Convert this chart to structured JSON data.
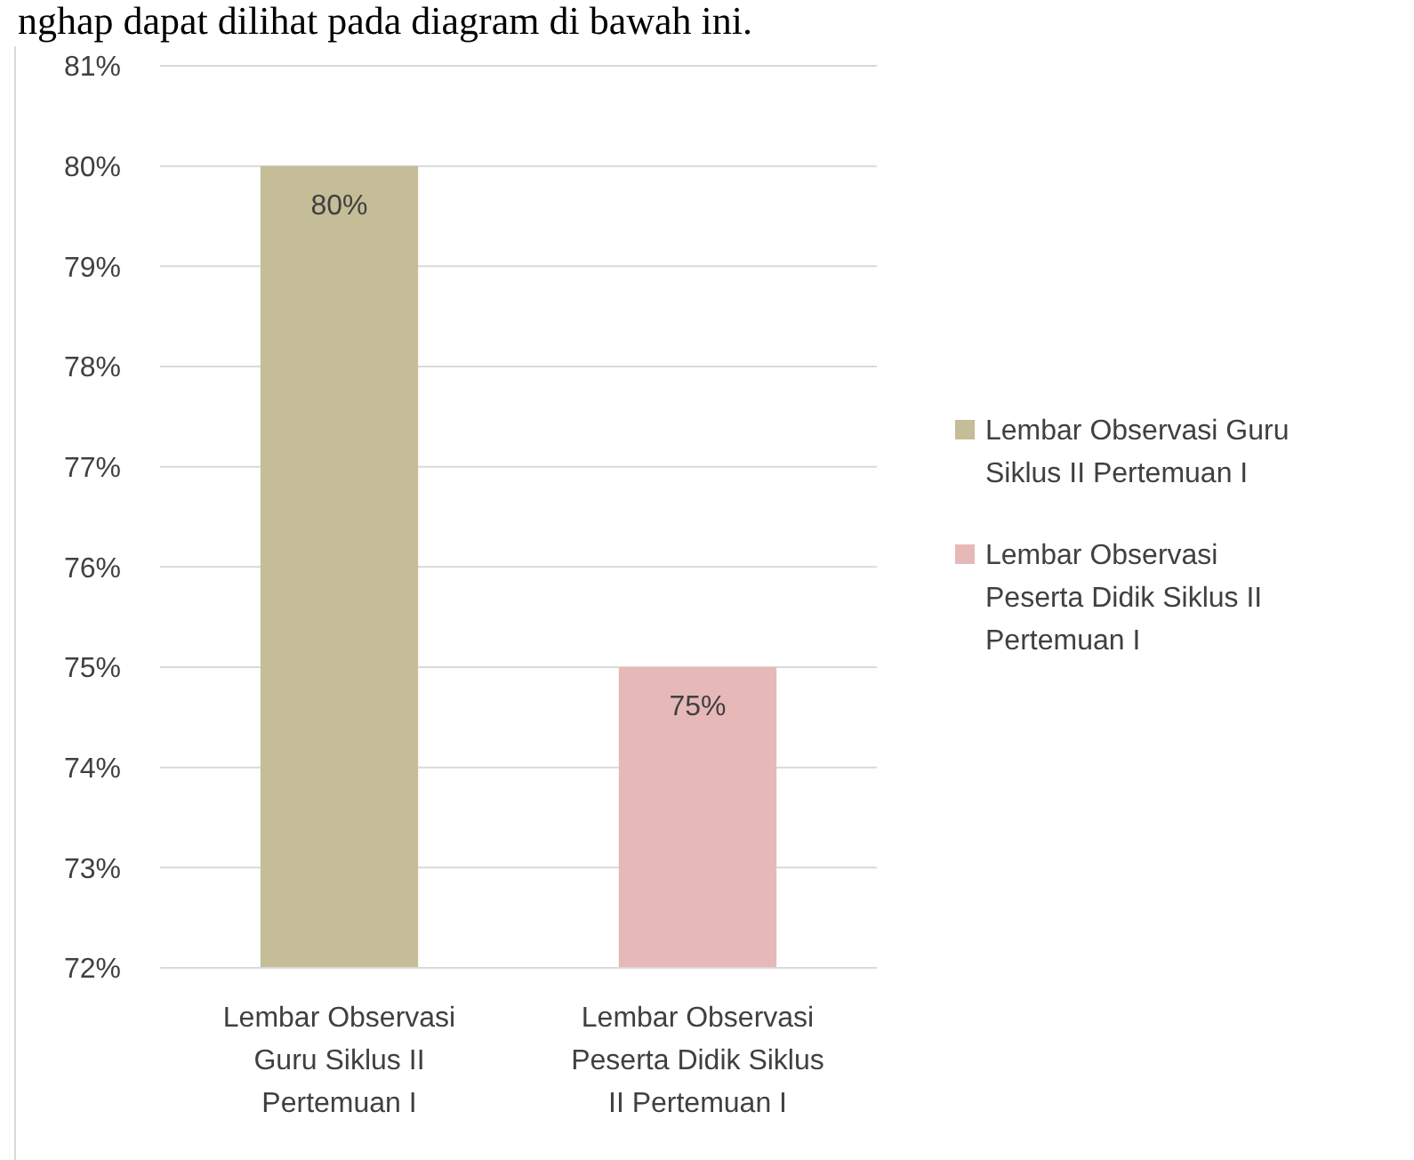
{
  "chart_data": {
    "type": "bar",
    "annotations": [
      "nghap dapat dilihat pada diagram di bawah ini."
    ],
    "categories": [
      "Lembar Observasi Guru Siklus II Pertemuan I",
      "Lembar Observasi Peserta Didik Siklus II Pertemuan I"
    ],
    "series": [
      {
        "name": "Lembar Observasi Guru Siklus II Pertemuan I",
        "color": "#c4bd97",
        "values": [
          80,
          null
        ],
        "value_labels": [
          "80%",
          null
        ]
      },
      {
        "name": "Lembar Observasi Peserta Didik Siklus II Pertemuan I",
        "color": "#e6b9b8",
        "values": [
          null,
          75
        ],
        "value_labels": [
          null,
          "75%"
        ]
      }
    ],
    "ylim": [
      72,
      81
    ],
    "yticks": [
      {
        "value": 72,
        "label": "72%"
      },
      {
        "value": 73,
        "label": "73%"
      },
      {
        "value": 74,
        "label": "74%"
      },
      {
        "value": 75,
        "label": "75%"
      },
      {
        "value": 76,
        "label": "76%"
      },
      {
        "value": 77,
        "label": "77%"
      },
      {
        "value": 78,
        "label": "78%"
      },
      {
        "value": 79,
        "label": "79%"
      },
      {
        "value": 80,
        "label": "80%"
      },
      {
        "value": 81,
        "label": "81%"
      }
    ],
    "grid": "y",
    "legend": "right"
  }
}
